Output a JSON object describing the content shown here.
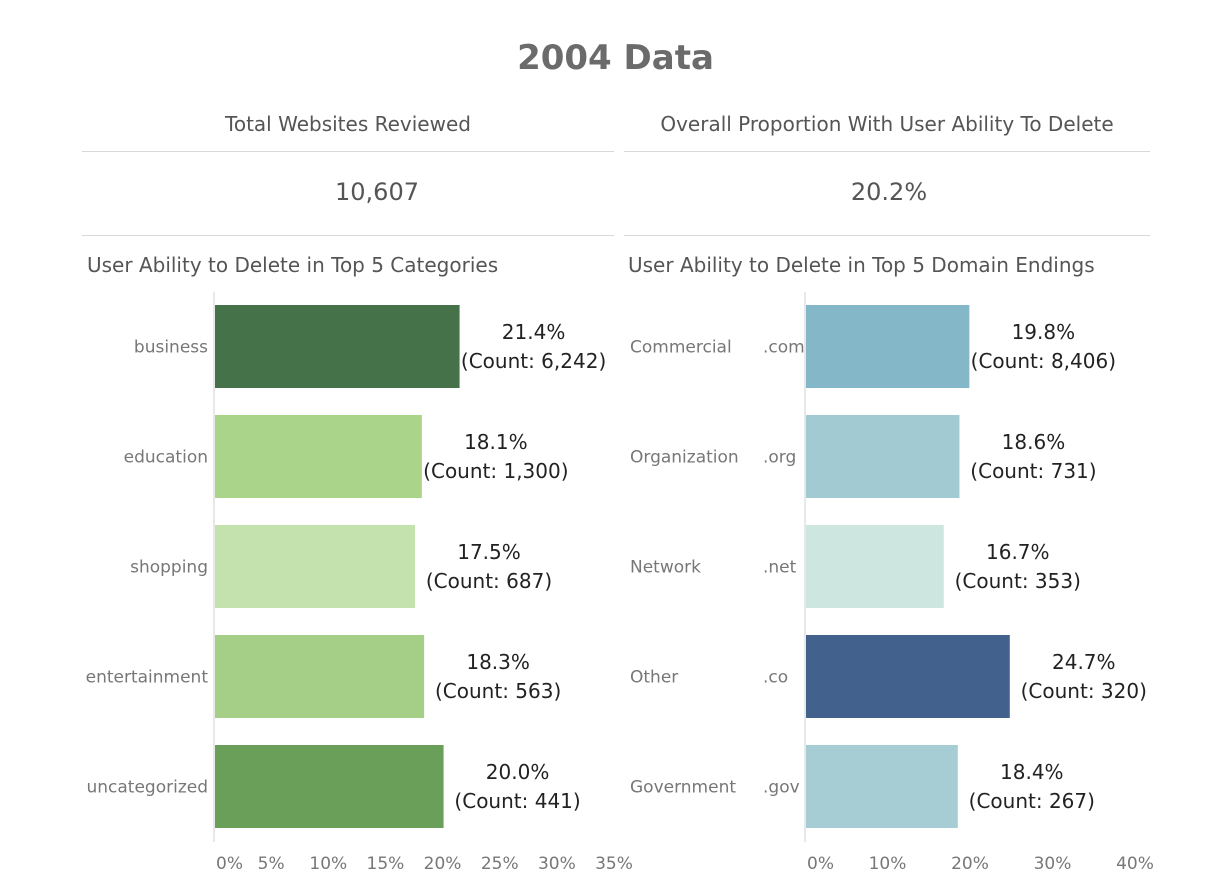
{
  "header": {
    "title": "2004 Data"
  },
  "kpis": {
    "total_label": "Total Websites Reviewed",
    "total_value": "10,607",
    "proportion_label": "Overall Proportion With User Ability To Delete",
    "proportion_value": "20.2%"
  },
  "chart_data": [
    {
      "type": "bar",
      "orientation": "horizontal",
      "title": "User Ability to Delete in Top 5 Categories",
      "categories": [
        "business",
        "education",
        "shopping",
        "entertainment",
        "uncategorized"
      ],
      "values": [
        21.4,
        18.1,
        17.5,
        18.3,
        20.0
      ],
      "value_labels": [
        "21.4%",
        "18.1%",
        "17.5%",
        "18.3%",
        "20.0%"
      ],
      "count_labels": [
        "(Count: 6,242)",
        "(Count: 1,300)",
        "(Count: 687)",
        "(Count: 563)",
        "(Count: 441)"
      ],
      "colors": [
        "#46724a",
        "#a9d48a",
        "#c4e2ad",
        "#a5cf86",
        "#6a9f59"
      ],
      "xlim": [
        0,
        35
      ],
      "ticks": [
        0,
        5,
        10,
        15,
        20,
        25,
        30,
        35
      ],
      "tick_labels": [
        "0%",
        "5%",
        "10%",
        "15%",
        "20%",
        "25%",
        "30%",
        "35%"
      ],
      "grid": false
    },
    {
      "type": "bar",
      "orientation": "horizontal",
      "title": "User Ability to Delete in Top 5 Domain Endings",
      "groups": [
        "Commercial",
        "Organization",
        "Network",
        "Other",
        "Government"
      ],
      "categories": [
        ".com",
        ".org",
        ".net",
        ".co",
        ".gov"
      ],
      "values": [
        19.8,
        18.6,
        16.7,
        24.7,
        18.4
      ],
      "value_labels": [
        "19.8%",
        "18.6%",
        "16.7%",
        "24.7%",
        "18.4%"
      ],
      "count_labels": [
        "(Count: 8,406)",
        "(Count: 731)",
        "(Count: 353)",
        "(Count: 320)",
        "(Count: 267)"
      ],
      "colors": [
        "#84b8c8",
        "#a1cad2",
        "#cee6e0",
        "#42628d",
        "#a6cdd4"
      ],
      "xlim": [
        0,
        40
      ],
      "ticks": [
        0,
        10,
        20,
        30,
        40
      ],
      "tick_labels": [
        "0%",
        "10%",
        "20%",
        "30%",
        "40%"
      ],
      "grid": false
    }
  ]
}
